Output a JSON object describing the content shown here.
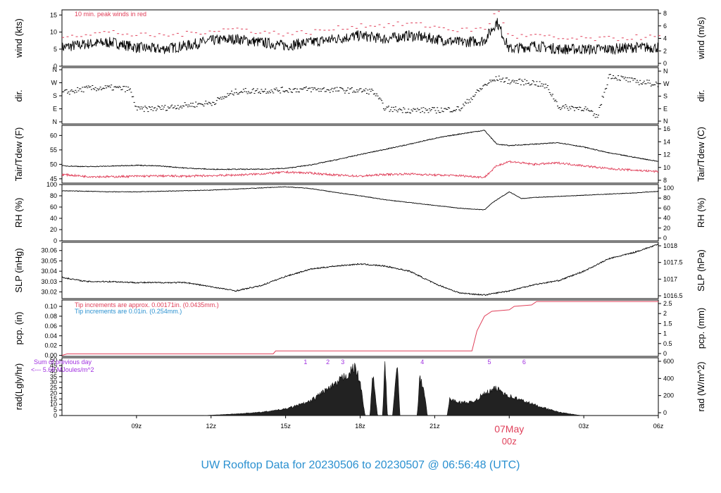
{
  "title": "UW Rooftop Data for 20230506  to  20230507 @ 06:56:48  (UTC)",
  "colors": {
    "title": "#2a90d0",
    "red": "#e0405a",
    "blue": "#2a90d0",
    "purple": "#a030e0",
    "line": "#000000"
  },
  "x_axis": {
    "ticks": [
      {
        "hour": 3,
        "label": "09z"
      },
      {
        "hour": 6,
        "label": "12z"
      },
      {
        "hour": 9,
        "label": "15z"
      },
      {
        "hour": 12,
        "label": "18z"
      },
      {
        "hour": 15,
        "label": "21z"
      },
      {
        "hour": 21,
        "label": "03z"
      },
      {
        "hour": 24,
        "label": "06z"
      }
    ],
    "day_label": "07May",
    "day_sub": "00z",
    "day_hour": 18
  },
  "chart_data": [
    {
      "type": "line",
      "name": "wind",
      "ylabel_left": "wind (kts)",
      "ylabel_right": "wind (m/s)",
      "annotation": "10 min. peak winds in red",
      "left_ticks": [
        "0",
        "5",
        "10",
        "15"
      ],
      "right_ticks": [
        "0",
        "2",
        "4",
        "6",
        "8"
      ],
      "ylim": [
        0,
        16.5
      ],
      "x": [
        0,
        1,
        2,
        3,
        4,
        5,
        6,
        7,
        8,
        9,
        10,
        11,
        12,
        13,
        14,
        15,
        16,
        17,
        17.5,
        18,
        19,
        20,
        21,
        22,
        23,
        24
      ],
      "series": [
        {
          "values": [
            5.5,
            6.5,
            7,
            5.5,
            5,
            6,
            7.5,
            8,
            7,
            6,
            7,
            8,
            9,
            8,
            9,
            8,
            7,
            7.5,
            13,
            5,
            6,
            5,
            5,
            5,
            5.5,
            5.5
          ]
        },
        {
          "values": [
            9,
            9.5,
            10,
            9,
            9,
            9.5,
            10.5,
            11,
            10,
            9.5,
            10,
            11,
            12,
            12,
            12.5,
            11.5,
            10.5,
            11,
            16.5,
            8.5,
            9,
            8,
            8,
            8,
            8.5,
            8.5
          ]
        }
      ]
    },
    {
      "type": "scatter",
      "name": "dir",
      "ylabel_left": "dir.",
      "ylabel_right": "dir.",
      "left_ticks": [
        "N",
        "E",
        "S",
        "W",
        "N"
      ],
      "right_ticks": [
        "N",
        "E",
        "S",
        "W",
        "N"
      ],
      "ylim": [
        0,
        360
      ],
      "x": [
        0,
        1,
        2,
        2.7,
        3,
        4,
        5,
        6,
        7,
        8,
        9,
        10,
        11,
        12,
        12.5,
        13,
        14,
        15,
        16,
        17,
        17.5,
        18,
        19,
        19.5,
        20,
        21,
        21.5,
        22,
        23,
        24
      ],
      "series": [
        {
          "values": [
            200,
            230,
            235,
            225,
            85,
            95,
            115,
            130,
            210,
            215,
            220,
            225,
            220,
            215,
            210,
            90,
            80,
            80,
            90,
            255,
            300,
            280,
            270,
            240,
            100,
            95,
            30,
            320,
            280,
            260
          ]
        }
      ]
    },
    {
      "type": "line",
      "name": "temp",
      "ylabel_left": "Tair/Tdew (F)",
      "ylabel_right": "Tair/Tdew (C)",
      "left_ticks": [
        "45",
        "50",
        "55",
        "60"
      ],
      "right_ticks": [
        "8",
        "10",
        "12",
        "14",
        "16"
      ],
      "ylim": [
        43.5,
        63.5
      ],
      "x": [
        0,
        1,
        2,
        3,
        4,
        5,
        6,
        7,
        8,
        9,
        10,
        11,
        12,
        13,
        14,
        15,
        16,
        17,
        17.5,
        18,
        19,
        20,
        21,
        22,
        23,
        24
      ],
      "series": [
        {
          "values": [
            49.5,
            49.2,
            49.4,
            49.7,
            49.4,
            48.7,
            48.3,
            48.3,
            48.3,
            48.6,
            49.8,
            51.5,
            53.4,
            55.2,
            57,
            59,
            60.5,
            61.8,
            57,
            56.5,
            57,
            57.5,
            56,
            54,
            52.5,
            51
          ]
        },
        {
          "values": [
            46.5,
            45.8,
            45.7,
            45.9,
            46,
            45.9,
            46.1,
            46.3,
            46.7,
            47.3,
            47,
            46.3,
            45.9,
            46.5,
            46.7,
            46.3,
            46.1,
            45.5,
            49.5,
            51,
            50,
            50.5,
            49.5,
            48.5,
            48,
            47.5
          ]
        }
      ]
    },
    {
      "type": "line",
      "name": "rh",
      "ylabel_left": "RH (%)",
      "ylabel_right": "RH (%)",
      "left_ticks": [
        "0",
        "20",
        "40",
        "60",
        "80",
        "100"
      ],
      "right_ticks": [
        "0",
        "20",
        "40",
        "60",
        "80",
        "100"
      ],
      "ylim": [
        0,
        100
      ],
      "x": [
        0,
        1,
        2,
        3,
        4,
        5,
        6,
        7,
        8,
        9,
        10,
        11,
        12,
        13,
        14,
        15,
        16,
        17,
        17.3,
        18,
        18.5,
        19,
        20,
        21,
        22,
        23,
        24
      ],
      "series": [
        {
          "values": [
            89,
            88,
            87,
            87,
            88,
            89,
            90,
            92,
            94,
            96,
            93,
            86,
            80,
            73,
            68,
            63,
            58,
            55,
            67,
            87,
            75,
            77,
            79,
            81,
            83,
            85,
            88
          ]
        }
      ]
    },
    {
      "type": "line",
      "name": "slp",
      "ylabel_left": "SLP (inHg)",
      "ylabel_right": "SLP (hPa)",
      "left_ticks": [
        "30.02",
        "30.03",
        "30.04",
        "30.05",
        "30.06"
      ],
      "right_ticks": [
        "1016.5",
        "1017",
        "1017.5",
        "1018"
      ],
      "ylim": [
        30.0135,
        30.068
      ],
      "x": [
        0,
        1,
        2,
        3,
        4,
        5,
        6,
        7,
        8,
        9,
        10,
        11,
        12,
        13,
        14,
        15,
        16,
        17,
        18,
        19,
        20,
        21,
        22,
        23,
        24
      ],
      "series": [
        {
          "values": [
            30.034,
            30.03,
            30.03,
            30.029,
            30.029,
            30.029,
            30.025,
            30.021,
            30.026,
            30.035,
            30.042,
            30.045,
            30.047,
            30.045,
            30.04,
            30.028,
            30.019,
            30.017,
            30.021,
            30.027,
            30.031,
            30.04,
            30.052,
            30.058,
            30.066
          ]
        }
      ]
    },
    {
      "type": "line",
      "name": "pcp",
      "ylabel_left": "pcp. (in)",
      "ylabel_right": "pcp. (mm)",
      "annotation_1": "Tip increments are approx. 0.00171in. (0.0435mm.)",
      "annotation_2": "Tip increments are 0.01in. (0.254mm.)",
      "left_ticks": [
        "0.00",
        "0.02",
        "0.04",
        "0.06",
        "0.08",
        "0.10"
      ],
      "right_ticks": [
        "0",
        "0.5",
        "1",
        "1.5",
        "2",
        "2.5"
      ],
      "ylim": [
        -0.002,
        0.113
      ],
      "x": [
        0,
        0.2,
        8.5,
        8.6,
        16.5,
        16.7,
        17,
        17.3,
        18,
        18.2,
        18.9,
        19.1,
        24
      ],
      "series": [
        {
          "values": [
            0,
            0.003,
            0.003,
            0.009,
            0.009,
            0.05,
            0.08,
            0.09,
            0.093,
            0.1,
            0.103,
            0.11,
            0.11
          ]
        }
      ]
    },
    {
      "type": "area",
      "name": "rad",
      "ylabel_left": "rad(Lgly/hr)",
      "ylabel_right": "rad (W/m^2)",
      "note_1": "Sum of previous day",
      "note_2": "<--- 5.68 MJoules/m^2",
      "left_ticks": [
        "0",
        "5",
        "10",
        "15",
        "20",
        "25",
        "30",
        "35",
        "40",
        "45",
        "50"
      ],
      "right_ticks": [
        "0",
        "200",
        "400",
        "600"
      ],
      "ylim": [
        0,
        52
      ],
      "event_marks": [
        {
          "hour": 9.8,
          "label": "1"
        },
        {
          "hour": 10.7,
          "label": "2"
        },
        {
          "hour": 11.3,
          "label": "3"
        },
        {
          "hour": 14.5,
          "label": "4"
        },
        {
          "hour": 17.2,
          "label": "5"
        },
        {
          "hour": 18.6,
          "label": "6"
        }
      ],
      "x": [
        5.7,
        6,
        7,
        8,
        9,
        10,
        10.5,
        11,
        11.3,
        11.6,
        11.8,
        12.0,
        12.2,
        12.4,
        12.5,
        12.7,
        12.9,
        13.0,
        13.1,
        13.3,
        13.5,
        13.6,
        13.7,
        13.9,
        14.3,
        14.4,
        14.6,
        14.7,
        15.5,
        15.6,
        16,
        16.5,
        17,
        17.5,
        18,
        19,
        20,
        20.9
      ],
      "series": [
        {
          "values": [
            0,
            0.3,
            1.5,
            3,
            6,
            13,
            22,
            28,
            35,
            40,
            45,
            30,
            0,
            0,
            40,
            0,
            0,
            50,
            0,
            0,
            48,
            0,
            0,
            0,
            0,
            35,
            20,
            0,
            0,
            15,
            12,
            12,
            20,
            25,
            18,
            10,
            3,
            0
          ]
        }
      ]
    }
  ]
}
